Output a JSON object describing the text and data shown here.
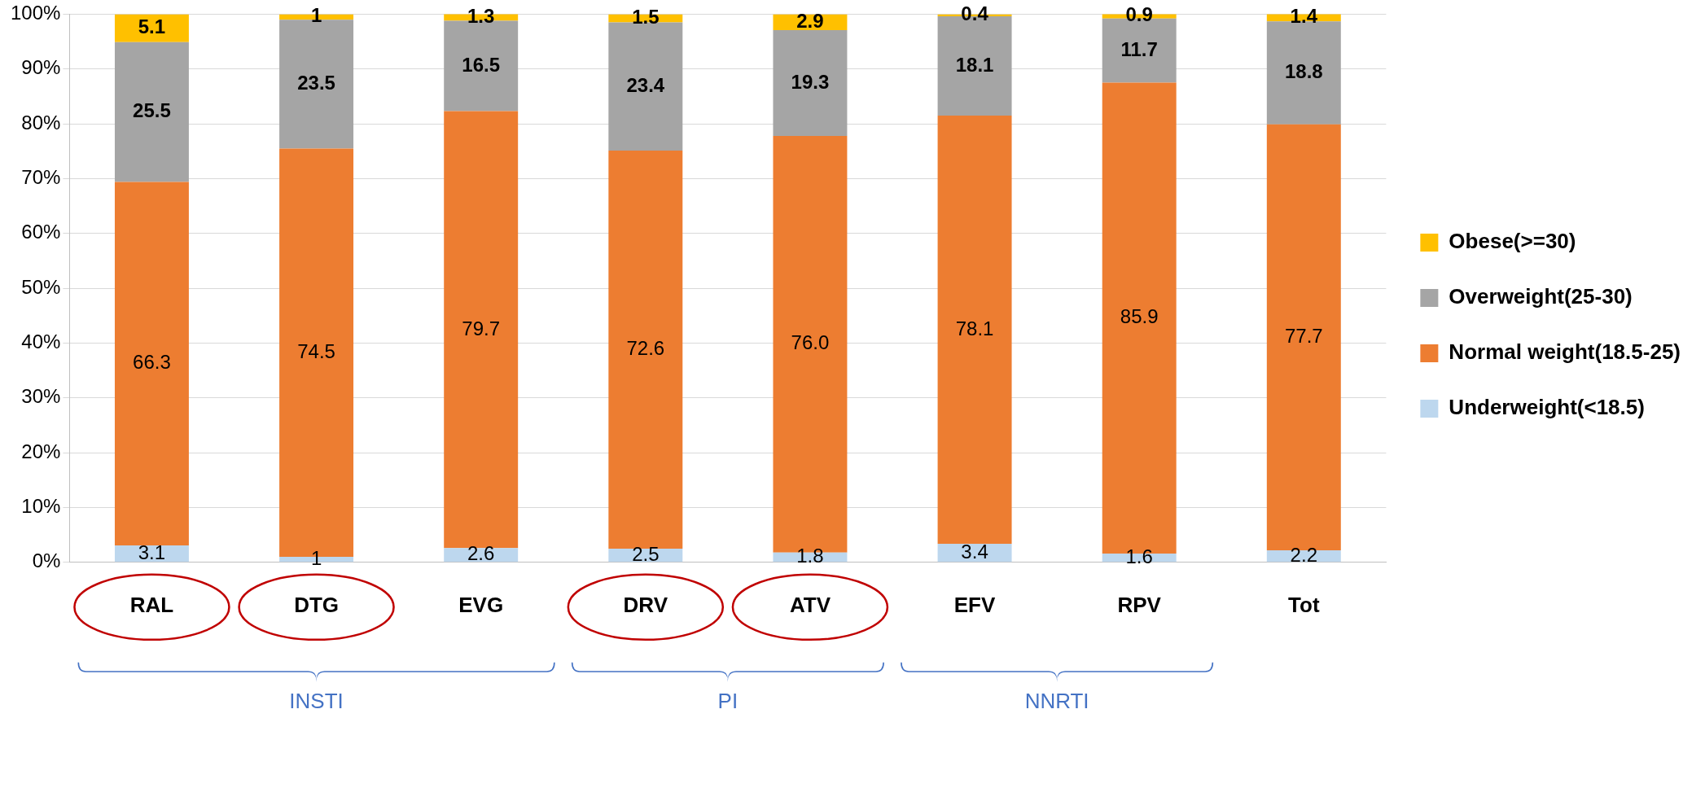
{
  "chart_data": {
    "type": "bar",
    "stacked": true,
    "categories": [
      "RAL",
      "DTG",
      "EVG",
      "DRV",
      "ATV",
      "EFV",
      "RPV",
      "Tot"
    ],
    "series": [
      {
        "name": "Underweight(<18.5)",
        "color": "#bdd7ee",
        "values": [
          3.1,
          1,
          2.6,
          2.5,
          1.8,
          3.4,
          1.6,
          2.2
        ],
        "value_labels": [
          "3.1",
          "1",
          "2.6",
          "2.5",
          "1.8",
          "3.4",
          "1.6",
          "2.2"
        ]
      },
      {
        "name": "Normal weight(18.5-25)",
        "color": "#ed7d31",
        "values": [
          66.3,
          74.5,
          79.7,
          72.6,
          76.0,
          78.1,
          85.9,
          77.7
        ],
        "value_labels": [
          "66.3",
          "74.5",
          "79.7",
          "72.6",
          "76.0",
          "78.1",
          "85.9",
          "77.7"
        ]
      },
      {
        "name": "Overweight(25-30)",
        "color": "#a5a5a5",
        "values": [
          25.5,
          23.5,
          16.5,
          23.4,
          19.3,
          18.1,
          11.7,
          18.8
        ],
        "value_labels": [
          "25.5",
          "23.5",
          "16.5",
          "23.4",
          "19.3",
          "18.1",
          "11.7",
          "18.8"
        ]
      },
      {
        "name": "Obese(>=30)",
        "color": "#ffc000",
        "values": [
          5.1,
          1,
          1.3,
          1.5,
          2.9,
          0.4,
          0.9,
          1.4
        ],
        "value_labels": [
          "5.1",
          "1",
          "1.3",
          "1.5",
          "2.9",
          "0.4",
          "0.9",
          "1.4"
        ]
      }
    ],
    "ylim": [
      0,
      100
    ],
    "yticks": [
      {
        "value": 0,
        "label": "0%"
      },
      {
        "value": 10,
        "label": "10%"
      },
      {
        "value": 20,
        "label": "20%"
      },
      {
        "value": 30,
        "label": "30%"
      },
      {
        "value": 40,
        "label": "40%"
      },
      {
        "value": 50,
        "label": "50%"
      },
      {
        "value": 60,
        "label": "60%"
      },
      {
        "value": 70,
        "label": "70%"
      },
      {
        "value": 80,
        "label": "80%"
      },
      {
        "value": 90,
        "label": "90%"
      },
      {
        "value": 100,
        "label": "100%"
      }
    ],
    "grid": "y",
    "legend": "right",
    "annotations": [
      "INSTI",
      "PI",
      "NNRTI"
    ]
  }
}
